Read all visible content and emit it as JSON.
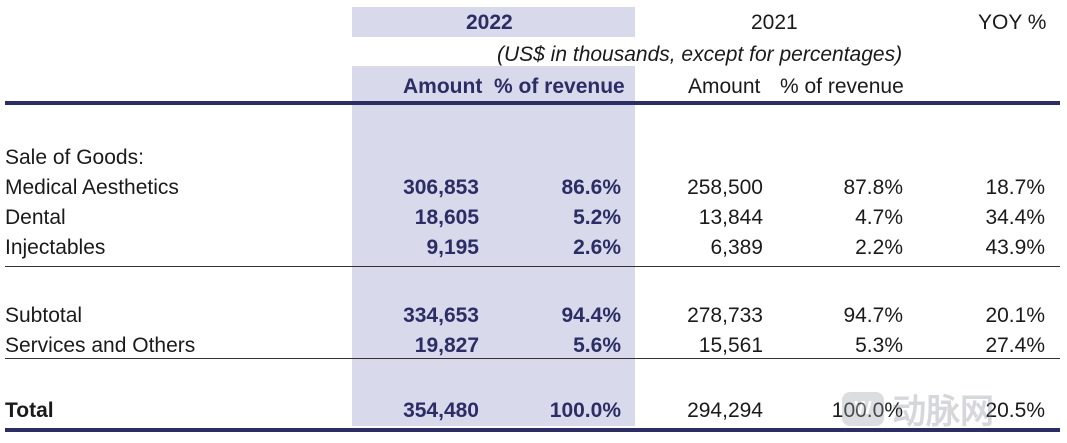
{
  "header": {
    "year_current": "2022",
    "year_prior": "2021",
    "yoy": "YOY %",
    "units_note": "(US$ in thousands, except for percentages)",
    "col_amount": "Amount",
    "col_pct_revenue": "% of revenue"
  },
  "rows": {
    "sale_of_goods": {
      "label": "Sale of Goods:"
    },
    "medical_aesthetics": {
      "label": "Medical Aesthetics",
      "amt_2022": "306,853",
      "pct_2022": "86.6%",
      "amt_2021": "258,500",
      "pct_2021": "87.8%",
      "yoy": "18.7%"
    },
    "dental": {
      "label": "Dental",
      "amt_2022": "18,605",
      "pct_2022": "5.2%",
      "amt_2021": "13,844",
      "pct_2021": "4.7%",
      "yoy": "34.4%"
    },
    "injectables": {
      "label": "Injectables",
      "amt_2022": "9,195",
      "pct_2022": "2.6%",
      "amt_2021": "6,389",
      "pct_2021": "2.2%",
      "yoy": "43.9%"
    },
    "subtotal": {
      "label": "Subtotal",
      "amt_2022": "334,653",
      "pct_2022": "94.4%",
      "amt_2021": "278,733",
      "pct_2021": "94.7%",
      "yoy": "20.1%"
    },
    "services": {
      "label": "Services and Others",
      "amt_2022": "19,827",
      "pct_2022": "5.6%",
      "amt_2021": "15,561",
      "pct_2021": "5.3%",
      "yoy": "27.4%"
    },
    "total": {
      "label": "Total",
      "amt_2022": "354,480",
      "pct_2022": "100.0%",
      "amt_2021": "294,294",
      "pct_2021": "100.0%",
      "yoy": "20.5%"
    }
  },
  "watermark": {
    "logo": "W",
    "text": "动脉网",
    "icon": "brand-logo-icon"
  },
  "colors": {
    "highlight_bg": "#d9d9ec",
    "highlight_text": "#2d2d66",
    "rule": "#2d2d66"
  }
}
